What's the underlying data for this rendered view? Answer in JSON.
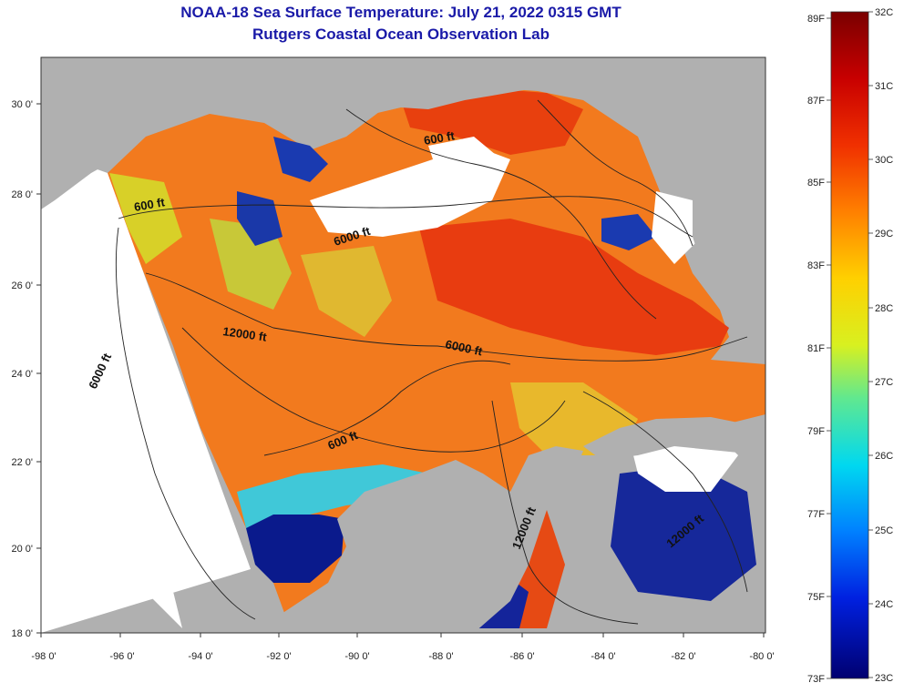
{
  "title": {
    "line1": "NOAA-18 Sea Surface Temperature:  July 21, 2022 0315 GMT",
    "line2": "Rutgers Coastal Ocean Observation Lab"
  },
  "colors": {
    "title": "#1a1aa8",
    "land": "#b0b0b0",
    "nodata": "#ffffff",
    "warm": "#f06018",
    "cool": "#0a1a8c"
  },
  "axes": {
    "lat_labels": [
      "30 0'",
      "28 0'",
      "26 0'",
      "24 0'",
      "22 0'",
      "20 0'",
      "18 0'"
    ],
    "lon_labels": [
      "-98 0'",
      "-96 0'",
      "-94 0'",
      "-92 0'",
      "-90 0'",
      "-88 0'",
      "-86 0'",
      "-84 0'",
      "-82 0'",
      "-80 0'"
    ]
  },
  "contours": [
    {
      "text": "600 ft"
    },
    {
      "text": "600 ft"
    },
    {
      "text": "6000 ft"
    },
    {
      "text": "12000 ft"
    },
    {
      "text": "6000 ft"
    },
    {
      "text": "6000 ft"
    },
    {
      "text": "600 ft"
    },
    {
      "text": "12000 ft"
    },
    {
      "text": "12000 ft"
    }
  ],
  "colorbar": {
    "celsius": [
      "32C",
      "31C",
      "30C",
      "29C",
      "28C",
      "27C",
      "26C",
      "25C",
      "24C",
      "23C"
    ],
    "fahrenheit": [
      "89F",
      "87F",
      "85F",
      "83F",
      "81F",
      "79F",
      "77F",
      "75F",
      "73F"
    ]
  }
}
